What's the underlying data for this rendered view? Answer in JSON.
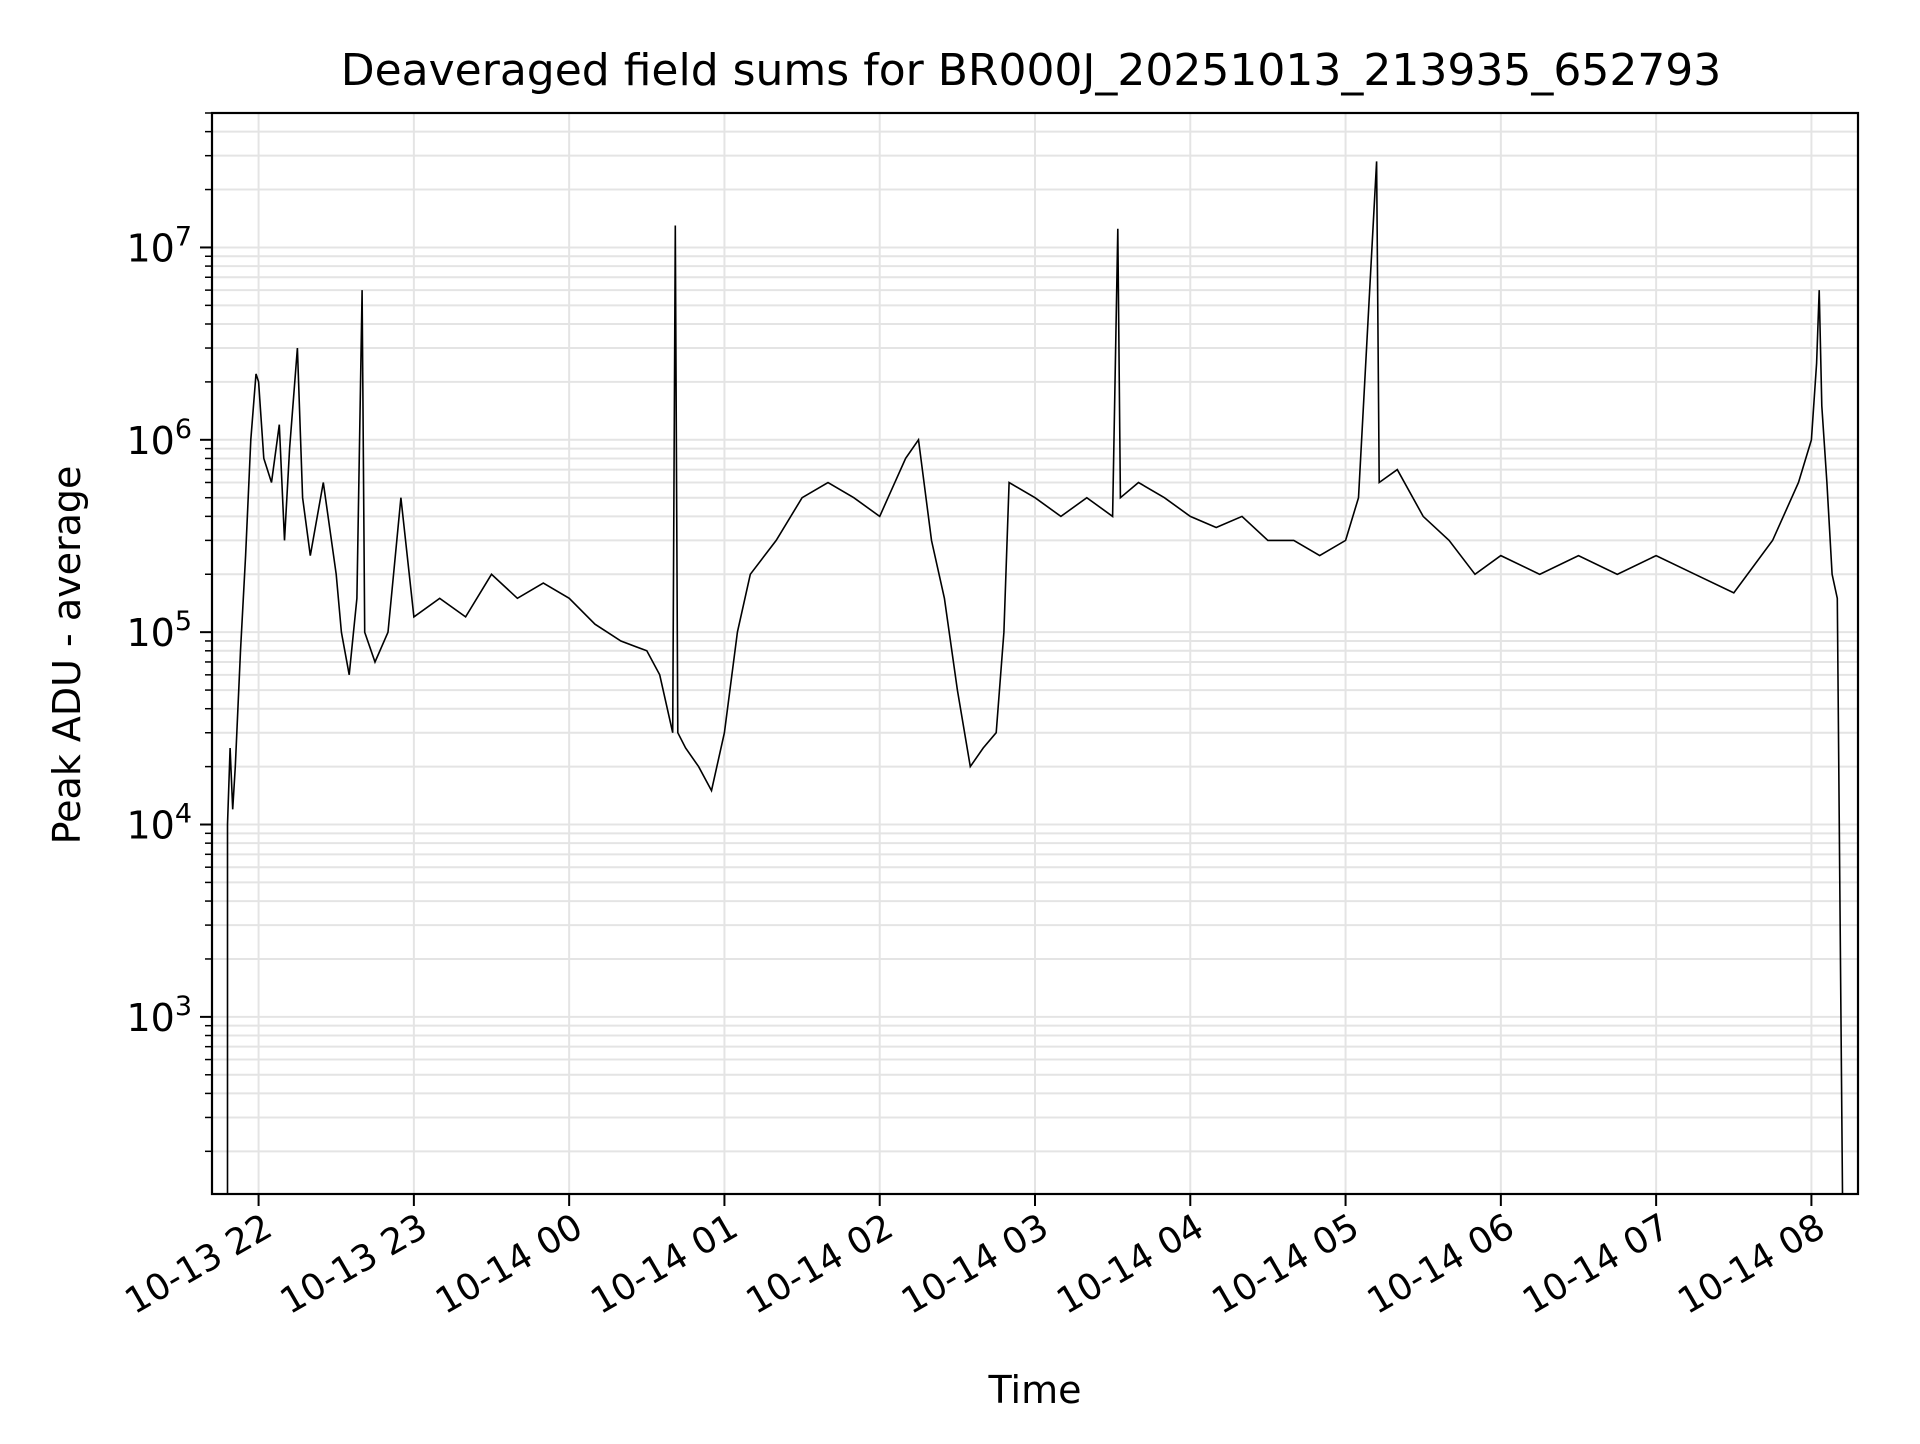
{
  "chart_data": {
    "type": "line",
    "title": "Deaveraged field sums for BR000J_20251013_213935_652793",
    "xlabel": "Time",
    "ylabel": "Peak ADU - average",
    "yscale": "log",
    "ylim": [
      120,
      50000000
    ],
    "xlim": [
      "2025-10-13 21:42",
      "2025-10-14 08:18"
    ],
    "grid": true,
    "legend": false,
    "line_color": "#000000",
    "x_ticks": [
      {
        "t": "2025-10-13 22:00",
        "label": "10-13 22"
      },
      {
        "t": "2025-10-13 23:00",
        "label": "10-13 23"
      },
      {
        "t": "2025-10-14 00:00",
        "label": "10-14 00"
      },
      {
        "t": "2025-10-14 01:00",
        "label": "10-14 01"
      },
      {
        "t": "2025-10-14 02:00",
        "label": "10-14 02"
      },
      {
        "t": "2025-10-14 03:00",
        "label": "10-14 03"
      },
      {
        "t": "2025-10-14 04:00",
        "label": "10-14 04"
      },
      {
        "t": "2025-10-14 05:00",
        "label": "10-14 05"
      },
      {
        "t": "2025-10-14 06:00",
        "label": "10-14 06"
      },
      {
        "t": "2025-10-14 07:00",
        "label": "10-14 07"
      },
      {
        "t": "2025-10-14 08:00",
        "label": "10-14 08"
      }
    ],
    "y_ticks": [
      {
        "v": 1000,
        "base": "10",
        "exp": "3"
      },
      {
        "v": 10000,
        "base": "10",
        "exp": "4"
      },
      {
        "v": 100000,
        "base": "10",
        "exp": "5"
      },
      {
        "v": 1000000,
        "base": "10",
        "exp": "6"
      },
      {
        "v": 10000000,
        "base": "10",
        "exp": "7"
      }
    ],
    "series": [
      {
        "points": [
          [
            "2025-10-13 21:48",
            120
          ],
          [
            "2025-10-13 21:48",
            10000
          ],
          [
            "2025-10-13 21:49",
            25000
          ],
          [
            "2025-10-13 21:50",
            12000
          ],
          [
            "2025-10-13 21:51",
            20000
          ],
          [
            "2025-10-13 21:52",
            40000
          ],
          [
            "2025-10-13 21:53",
            80000
          ],
          [
            "2025-10-13 21:55",
            250000
          ],
          [
            "2025-10-13 21:57",
            1000000
          ],
          [
            "2025-10-13 21:59",
            2200000
          ],
          [
            "2025-10-13 22:00",
            2000000
          ],
          [
            "2025-10-13 22:02",
            800000
          ],
          [
            "2025-10-13 22:05",
            600000
          ],
          [
            "2025-10-13 22:08",
            1200000
          ],
          [
            "2025-10-13 22:10",
            300000
          ],
          [
            "2025-10-13 22:12",
            900000
          ],
          [
            "2025-10-13 22:15",
            3000000
          ],
          [
            "2025-10-13 22:17",
            500000
          ],
          [
            "2025-10-13 22:20",
            250000
          ],
          [
            "2025-10-13 22:25",
            600000
          ],
          [
            "2025-10-13 22:30",
            200000
          ],
          [
            "2025-10-13 22:32",
            100000
          ],
          [
            "2025-10-13 22:35",
            60000
          ],
          [
            "2025-10-13 22:38",
            150000
          ],
          [
            "2025-10-13 22:40",
            6000000
          ],
          [
            "2025-10-13 22:41",
            100000
          ],
          [
            "2025-10-13 22:45",
            70000
          ],
          [
            "2025-10-13 22:50",
            100000
          ],
          [
            "2025-10-13 22:55",
            500000
          ],
          [
            "2025-10-13 23:00",
            120000
          ],
          [
            "2025-10-13 23:10",
            150000
          ],
          [
            "2025-10-13 23:20",
            120000
          ],
          [
            "2025-10-13 23:30",
            200000
          ],
          [
            "2025-10-13 23:40",
            150000
          ],
          [
            "2025-10-13 23:50",
            180000
          ],
          [
            "2025-10-14 00:00",
            150000
          ],
          [
            "2025-10-14 00:10",
            110000
          ],
          [
            "2025-10-14 00:20",
            90000
          ],
          [
            "2025-10-14 00:30",
            80000
          ],
          [
            "2025-10-14 00:35",
            60000
          ],
          [
            "2025-10-14 00:40",
            30000
          ],
          [
            "2025-10-14 00:41",
            13000000
          ],
          [
            "2025-10-14 00:42",
            30000
          ],
          [
            "2025-10-14 00:45",
            25000
          ],
          [
            "2025-10-14 00:50",
            20000
          ],
          [
            "2025-10-14 00:55",
            15000
          ],
          [
            "2025-10-14 01:00",
            30000
          ],
          [
            "2025-10-14 01:05",
            100000
          ],
          [
            "2025-10-14 01:10",
            200000
          ],
          [
            "2025-10-14 01:20",
            300000
          ],
          [
            "2025-10-14 01:30",
            500000
          ],
          [
            "2025-10-14 01:40",
            600000
          ],
          [
            "2025-10-14 01:50",
            500000
          ],
          [
            "2025-10-14 02:00",
            400000
          ],
          [
            "2025-10-14 02:10",
            800000
          ],
          [
            "2025-10-14 02:15",
            1000000
          ],
          [
            "2025-10-14 02:20",
            300000
          ],
          [
            "2025-10-14 02:25",
            150000
          ],
          [
            "2025-10-14 02:30",
            50000
          ],
          [
            "2025-10-14 02:35",
            20000
          ],
          [
            "2025-10-14 02:40",
            25000
          ],
          [
            "2025-10-14 02:45",
            30000
          ],
          [
            "2025-10-14 02:48",
            100000
          ],
          [
            "2025-10-14 02:50",
            600000
          ],
          [
            "2025-10-14 03:00",
            500000
          ],
          [
            "2025-10-14 03:10",
            400000
          ],
          [
            "2025-10-14 03:20",
            500000
          ],
          [
            "2025-10-14 03:30",
            400000
          ],
          [
            "2025-10-14 03:32",
            12500000
          ],
          [
            "2025-10-14 03:33",
            500000
          ],
          [
            "2025-10-14 03:40",
            600000
          ],
          [
            "2025-10-14 03:50",
            500000
          ],
          [
            "2025-10-14 04:00",
            400000
          ],
          [
            "2025-10-14 04:10",
            350000
          ],
          [
            "2025-10-14 04:20",
            400000
          ],
          [
            "2025-10-14 04:30",
            300000
          ],
          [
            "2025-10-14 04:40",
            300000
          ],
          [
            "2025-10-14 04:50",
            250000
          ],
          [
            "2025-10-14 05:00",
            300000
          ],
          [
            "2025-10-14 05:05",
            500000
          ],
          [
            "2025-10-14 05:12",
            28000000
          ],
          [
            "2025-10-14 05:13",
            600000
          ],
          [
            "2025-10-14 05:20",
            700000
          ],
          [
            "2025-10-14 05:30",
            400000
          ],
          [
            "2025-10-14 05:40",
            300000
          ],
          [
            "2025-10-14 05:50",
            200000
          ],
          [
            "2025-10-14 06:00",
            250000
          ],
          [
            "2025-10-14 06:15",
            200000
          ],
          [
            "2025-10-14 06:30",
            250000
          ],
          [
            "2025-10-14 06:45",
            200000
          ],
          [
            "2025-10-14 07:00",
            250000
          ],
          [
            "2025-10-14 07:15",
            200000
          ],
          [
            "2025-10-14 07:30",
            160000
          ],
          [
            "2025-10-14 07:45",
            300000
          ],
          [
            "2025-10-14 07:55",
            600000
          ],
          [
            "2025-10-14 08:00",
            1000000
          ],
          [
            "2025-10-14 08:02",
            2500000
          ],
          [
            "2025-10-14 08:03",
            6000000
          ],
          [
            "2025-10-14 08:04",
            1500000
          ],
          [
            "2025-10-14 08:06",
            600000
          ],
          [
            "2025-10-14 08:08",
            200000
          ],
          [
            "2025-10-14 08:10",
            150000
          ],
          [
            "2025-10-14 08:12",
            120
          ]
        ]
      }
    ]
  }
}
